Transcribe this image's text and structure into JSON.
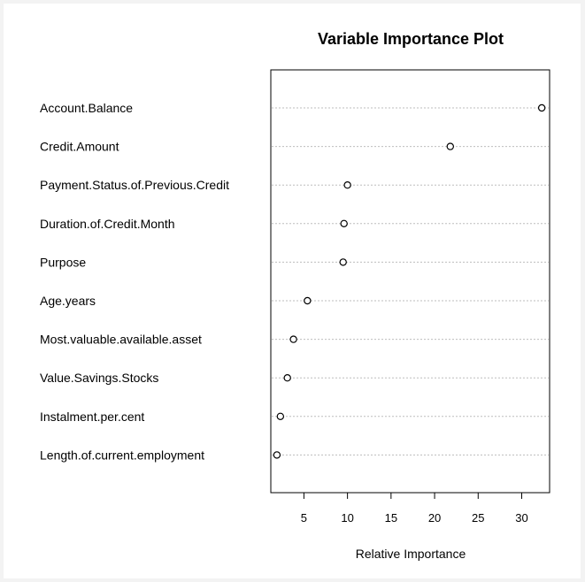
{
  "chart_data": {
    "type": "scatter",
    "title": "Variable Importance Plot",
    "xlabel": "Relative Importance",
    "ylabel": "",
    "xlim": [
      1.2,
      33.2
    ],
    "xticks": [
      5,
      10,
      15,
      20,
      25,
      30
    ],
    "grid": "horizontal dotted",
    "marker": "open-circle",
    "categories": [
      "Account.Balance",
      "Credit.Amount",
      "Payment.Status.of.Previous.Credit",
      "Duration.of.Credit.Month",
      "Purpose",
      "Age.years",
      "Most.valuable.available.asset",
      "Value.Savings.Stocks",
      "Instalment.per.cent",
      "Length.of.current.employment"
    ],
    "values": [
      32.3,
      21.8,
      10.0,
      9.6,
      9.5,
      5.4,
      3.8,
      3.1,
      2.3,
      1.9
    ]
  }
}
